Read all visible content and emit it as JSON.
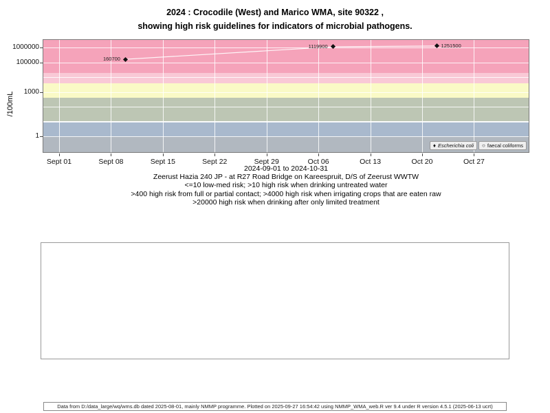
{
  "title": {
    "line1": "2024 : Crocodile (West) and Marico WMA, site 90322 ,",
    "line2": "showing high risk guidelines for indicators of microbial pathogens."
  },
  "caption": {
    "site": "Zeerust Hazia 240 JP - at R27 Road Bridge on Kareespruit, D/S of Zeerust WWTW",
    "risk1": "<=10 low-med risk; >10 high risk when drinking untreated water",
    "risk2": ">400 high risk from full or partial contact; >4000 high risk when irrigating crops that are eaten raw",
    "risk3": ">20000 high risk when drinking after only limited treatment"
  },
  "footer": "Data from D:/data_large/wq/wms.db dated 2025-08-01, mainly NMMP programme. Plotted on 2025-09-27 16:54:42 using NMMP_WMA_web.R ver 9.4 under R version 4.5.1 (2025-06-13 ucrt)",
  "chart_data": {
    "type": "scatter",
    "title": "2024 : Crocodile (West) and Marico WMA, site 90322 , showing high risk guidelines for indicators of microbial pathogens.",
    "xlabel": "2024-09-01 to 2024-10-31",
    "ylabel": "/100mL",
    "y_scale": "log10",
    "grid": true,
    "x_range": [
      "2024-09-01",
      "2024-10-31"
    ],
    "x_ticks": [
      "Sept 01",
      "Sept 08",
      "Sept 15",
      "Sept 22",
      "Sept 29",
      "Oct 06",
      "Oct 13",
      "Oct 20",
      "Oct 27"
    ],
    "y_ticks": [
      {
        "label": "1000000",
        "value": 1000000
      },
      {
        "label": "100000",
        "value": 100000
      },
      {
        "label": "1000",
        "value": 1000
      },
      {
        "label": "1",
        "value": 1
      }
    ],
    "series": [
      {
        "name": "Escherichia coli",
        "marker": "filled-diamond",
        "points": [
          {
            "date": "2024-09-10",
            "value": 160700,
            "label": "160700",
            "label_side": "left"
          },
          {
            "date": "2024-10-08",
            "value": 1119900,
            "label": "1119900",
            "label_side": "left"
          },
          {
            "date": "2024-10-22",
            "value": 1251500,
            "label": "1251500",
            "label_side": "right"
          }
        ]
      },
      {
        "name": "faecal coliforms",
        "marker": "open-circle",
        "points": []
      }
    ],
    "guideline_bands": [
      {
        "min": 20000,
        "max": null,
        "color": "#f5a3ba"
      },
      {
        "min": 4000,
        "max": 20000,
        "color": "#f9c9d6"
      },
      {
        "min": 400,
        "max": 4000,
        "color": "#fafac6"
      },
      {
        "min": 10,
        "max": 400,
        "color": "#bdc6b4"
      },
      {
        "min": 1,
        "max": 10,
        "color": "#a9b9cd"
      },
      {
        "min": null,
        "max": 1,
        "color": "#b1b8c0"
      }
    ],
    "legend": [
      {
        "label": "Escherichia coli",
        "marker": "filled-diamond",
        "italic": true
      },
      {
        "label": "faecal coliforms",
        "marker": "open-circle",
        "italic": false
      }
    ],
    "legend_position": "bottom-right"
  }
}
